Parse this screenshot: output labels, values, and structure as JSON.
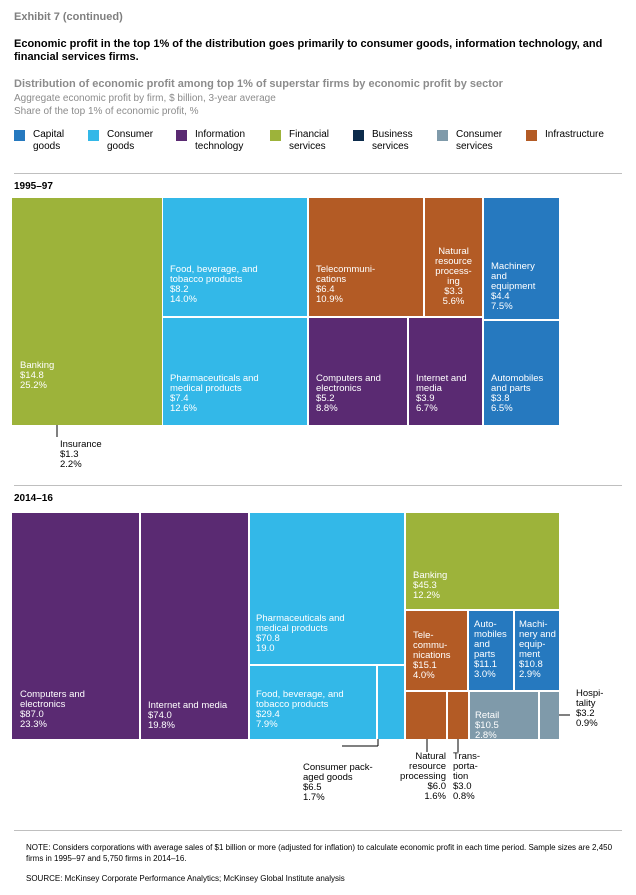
{
  "header": {
    "exhibit": "Exhibit 7 (continued)",
    "headline": "Economic profit in the top 1% of the distribution goes primarily to consumer goods, information technology, and financial services firms."
  },
  "chart_data": {
    "type": "treemap",
    "title": "Distribution of economic profit among top 1% of superstar firms by economic profit by sector",
    "subtitle_1": "Aggregate economic profit by firm, $ billion, 3-year average",
    "subtitle_2": "Share of the top 1% of economic profit, %",
    "legend": [
      {
        "name": "Capital goods",
        "lines": "Capital\ngoods",
        "color": "#2679bf"
      },
      {
        "name": "Consumer goods",
        "lines": "Consumer\ngoods",
        "color": "#33b8e8"
      },
      {
        "name": "Information technology",
        "lines": "Information\ntechnology",
        "color": "#5a2a72"
      },
      {
        "name": "Financial services",
        "lines": "Financial\nservices",
        "color": "#9db33a"
      },
      {
        "name": "Business services",
        "lines": "Business\nservices",
        "color": "#0c2b4b"
      },
      {
        "name": "Consumer services",
        "lines": "Consumer\nservices",
        "color": "#7f9aaa"
      },
      {
        "name": "Infrastructure",
        "lines": "Infrastructure",
        "color": "#b35b25"
      }
    ],
    "periods": [
      {
        "label": "1995–97",
        "cells": [
          {
            "name": "Banking",
            "sector": "Financial services",
            "value": "$14.8",
            "share": "25.2%"
          },
          {
            "name": "Insurance",
            "sector": "Financial services",
            "value": "$1.3",
            "share": "2.2%"
          },
          {
            "name": "Food, beverage, and tobacco products",
            "sector": "Consumer goods",
            "value": "$8.2",
            "share": "14.0%"
          },
          {
            "name": "Pharmaceuticals and medical products",
            "sector": "Consumer goods",
            "value": "$7.4",
            "share": "12.6%"
          },
          {
            "name": "Telecommunications",
            "sector": "Infrastructure",
            "value": "$6.4",
            "share": "10.9%"
          },
          {
            "name": "Natural resource processing",
            "sector": "Infrastructure",
            "value": "$3.3",
            "share": "5.6%"
          },
          {
            "name": "Machinery and equipment",
            "sector": "Capital goods",
            "value": "$4.4",
            "share": "7.5%"
          },
          {
            "name": "Computers and electronics",
            "sector": "Information technology",
            "value": "$5.2",
            "share": "8.8%"
          },
          {
            "name": "Internet and media",
            "sector": "Information technology",
            "value": "$3.9",
            "share": "6.7%"
          },
          {
            "name": "Automobiles and parts",
            "sector": "Capital goods",
            "value": "$3.8",
            "share": "6.5%"
          }
        ]
      },
      {
        "label": "2014–16",
        "cells": [
          {
            "name": "Computers and electronics",
            "sector": "Information technology",
            "value": "$87.0",
            "share": "23.3%"
          },
          {
            "name": "Internet and media",
            "sector": "Information technology",
            "value": "$74.0",
            "share": "19.8%"
          },
          {
            "name": "Pharmaceuticals and medical products",
            "sector": "Consumer goods",
            "value": "$70.8",
            "share": "19.0"
          },
          {
            "name": "Food, beverage, and tobacco products",
            "sector": "Consumer goods",
            "value": "$29.4",
            "share": "7.9%"
          },
          {
            "name": "Consumer packaged goods",
            "sector": "Consumer goods",
            "value": "$6.5",
            "share": "1.7%"
          },
          {
            "name": "Banking",
            "sector": "Financial services",
            "value": "$45.3",
            "share": "12.2%"
          },
          {
            "name": "Telecommunications",
            "sector": "Infrastructure",
            "value": "$15.1",
            "share": "4.0%"
          },
          {
            "name": "Automobiles and parts",
            "sector": "Capital goods",
            "value": "$11.1",
            "share": "3.0%"
          },
          {
            "name": "Machinery and equipment",
            "sector": "Capital goods",
            "value": "$10.8",
            "share": "2.9%"
          },
          {
            "name": "Natural resource processing",
            "sector": "Infrastructure",
            "value": "$6.0",
            "share": "1.6%"
          },
          {
            "name": "Transportation",
            "sector": "Infrastructure",
            "value": "$3.0",
            "share": "0.8%"
          },
          {
            "name": "Retail",
            "sector": "Consumer services",
            "value": "$10.5",
            "share": "2.8%"
          },
          {
            "name": "Hospitality",
            "sector": "Consumer services",
            "value": "$3.2",
            "share": "0.9%"
          }
        ]
      }
    ]
  },
  "footer": {
    "note": "NOTE: Considers corporations with average sales of $1 billion or more (adjusted for inflation) to calculate economic profit in each time period. Sample sizes are 2,450 firms in 1995–97 and 5,750 firms in 2014–16.",
    "source": "SOURCE: McKinsey Corporate Performance Analytics; McKinsey Global Institute analysis"
  }
}
